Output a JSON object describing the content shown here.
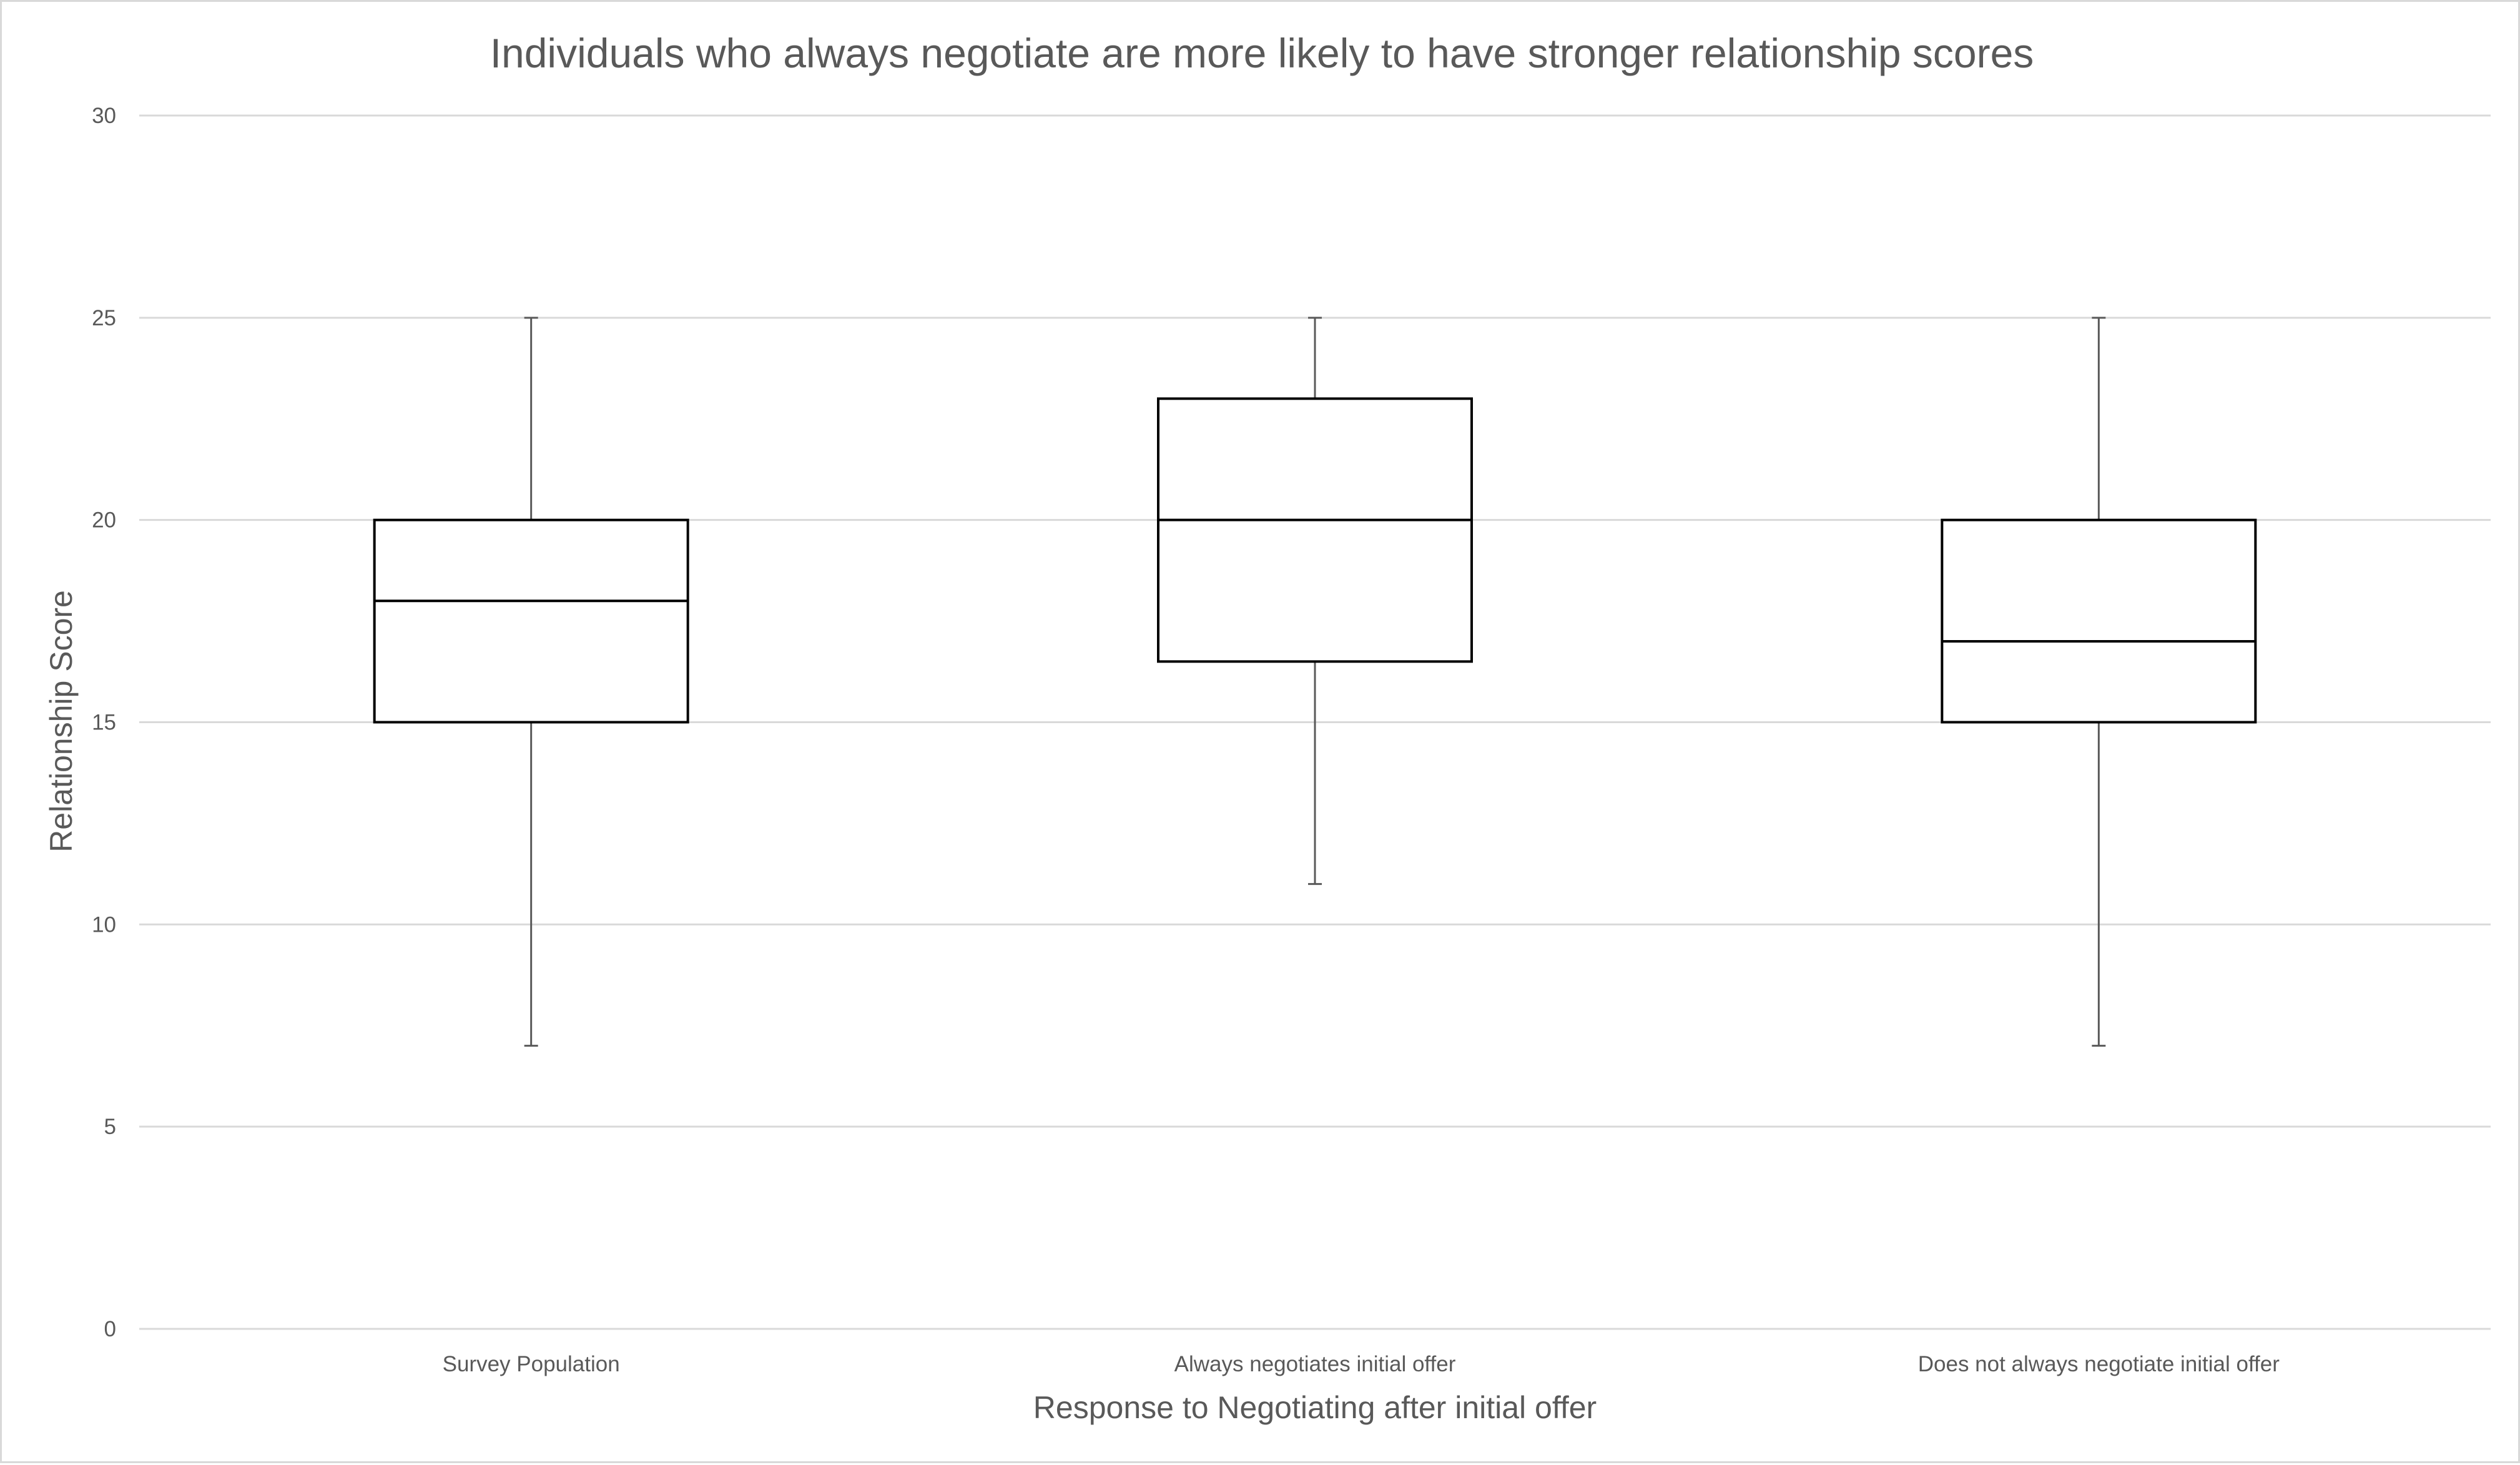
{
  "chart_data": {
    "type": "box",
    "title": "Individuals who always negotiate are more likely to have stronger relationship scores",
    "xlabel": "Response to Negotiating after initial offer",
    "ylabel": "Relationship Score",
    "ylim": [
      0,
      30
    ],
    "yticks": [
      "0",
      "5",
      "10",
      "15",
      "20",
      "25",
      "30"
    ],
    "grid": true,
    "categories": [
      "Survey Population",
      "Always negotiates initial offer",
      "Does not always negotiate initial offer"
    ],
    "boxes": [
      {
        "min": 7,
        "q1": 15,
        "median": 18,
        "q3": 20,
        "max": 25
      },
      {
        "min": 11,
        "q1": 16.5,
        "median": 20,
        "q3": 23,
        "max": 25
      },
      {
        "min": 7,
        "q1": 15,
        "median": 17,
        "q3": 20,
        "max": 25
      }
    ],
    "colors": {
      "box_fill": "#ffffff",
      "box_stroke": "#000000",
      "whisker": "#595959",
      "grid": "#d9d9d9",
      "text": "#595959"
    }
  }
}
